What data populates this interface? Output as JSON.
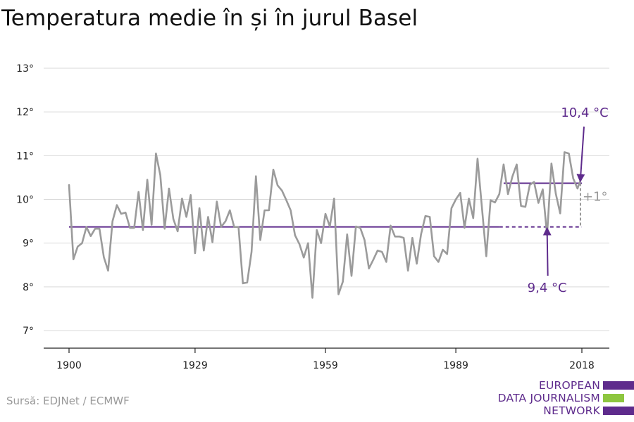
{
  "title": "Temperatura medie în și în jurul Basel",
  "source": "Sursă: EDJNet / ECMWF",
  "logo": {
    "lines": [
      "EUROPEAN",
      "DATA JOURNALISM",
      "NETWORK"
    ],
    "colors": [
      "#5e2b8c",
      "#8dc63f",
      "#5e2b8c"
    ]
  },
  "colors": {
    "series": "#9b9b9b",
    "accent": "#5e2b8c",
    "grid": "#d9d9d9",
    "axis": "#222222",
    "delta": "#9a9a9a"
  },
  "chart_data": {
    "type": "line",
    "title": "Temperatura medie în și în jurul Basel",
    "xlabel": "",
    "ylabel": "",
    "xlim": [
      1900,
      2018
    ],
    "ylim": [
      7,
      13
    ],
    "x_ticks": [
      1900,
      1929,
      1959,
      1989,
      2018
    ],
    "x_tick_labels": [
      "1900",
      "1929",
      "1959",
      "1989",
      "2018"
    ],
    "y_ticks": [
      7,
      8,
      9,
      10,
      11,
      12,
      13
    ],
    "y_tick_labels": [
      "7°",
      "8°",
      "9°",
      "10°",
      "11°",
      "12°",
      "13°"
    ],
    "grid": true,
    "series": [
      {
        "x": [
          1900,
          1901,
          1902,
          1903,
          1904,
          1905,
          1906,
          1907,
          1908,
          1909,
          1910,
          1911,
          1912,
          1913,
          1914,
          1915,
          1916,
          1917,
          1918,
          1919,
          1920,
          1921,
          1922,
          1923,
          1924,
          1925,
          1926,
          1927,
          1928,
          1929,
          1930,
          1931,
          1932,
          1933,
          1934,
          1935,
          1936,
          1937,
          1938,
          1939,
          1940,
          1941,
          1942,
          1943,
          1944,
          1945,
          1946,
          1947,
          1948,
          1949,
          1950,
          1951,
          1952,
          1953,
          1954,
          1955,
          1956,
          1957,
          1958,
          1959,
          1960,
          1961,
          1962,
          1963,
          1964,
          1965,
          1966,
          1967,
          1968,
          1969,
          1970,
          1971,
          1972,
          1973,
          1974,
          1975,
          1976,
          1977,
          1978,
          1979,
          1980,
          1981,
          1982,
          1983,
          1984,
          1985,
          1986,
          1987,
          1988,
          1989,
          1990,
          1991,
          1992,
          1993,
          1994,
          1995,
          1996,
          1997,
          1998,
          1999,
          2000,
          2001,
          2002,
          2003,
          2004,
          2005,
          2006,
          2007,
          2008,
          2009,
          2010,
          2011,
          2012,
          2013,
          2014,
          2015,
          2016,
          2017,
          2018
        ],
        "values": [
          10.33,
          8.63,
          8.92,
          9.0,
          9.37,
          9.16,
          9.33,
          9.33,
          8.68,
          8.37,
          9.5,
          9.87,
          9.67,
          9.7,
          9.35,
          9.35,
          10.17,
          9.3,
          10.45,
          9.42,
          11.05,
          10.55,
          9.33,
          10.25,
          9.55,
          9.27,
          10.02,
          9.6,
          10.1,
          8.77,
          9.8,
          8.83,
          9.6,
          9.02,
          9.95,
          9.37,
          9.5,
          9.75,
          9.37,
          9.37,
          8.08,
          8.1,
          8.8,
          10.53,
          9.07,
          9.75,
          9.75,
          10.68,
          10.32,
          10.2,
          9.98,
          9.75,
          9.18,
          8.98,
          8.67,
          9.0,
          7.75,
          9.3,
          9.0,
          9.67,
          9.38,
          10.02,
          7.83,
          8.12,
          9.2,
          8.25,
          9.38,
          9.35,
          9.07,
          8.42,
          8.62,
          8.83,
          8.8,
          8.57,
          9.4,
          9.15,
          9.15,
          9.12,
          8.37,
          9.12,
          8.53,
          9.2,
          9.62,
          9.6,
          8.7,
          8.57,
          8.85,
          8.75,
          9.8,
          10.0,
          10.15,
          9.35,
          10.02,
          9.57,
          10.93,
          9.82,
          8.7,
          9.98,
          9.93,
          10.12,
          10.8,
          10.12,
          10.52,
          10.8,
          9.85,
          9.83,
          10.33,
          10.4,
          9.92,
          10.23,
          9.18,
          10.82,
          10.13,
          9.68,
          11.08,
          11.05,
          10.48,
          10.25,
          10.52
        ]
      }
    ],
    "reference_lines": [
      {
        "label": "9,4 °C",
        "y": 9.37,
        "x_start": 1900,
        "x_end": 1999,
        "dashed_to": 2018
      },
      {
        "label": "10,4 °C",
        "y": 10.37,
        "x_start": 2000,
        "x_end": 2018
      }
    ],
    "delta_label": "+1°"
  }
}
